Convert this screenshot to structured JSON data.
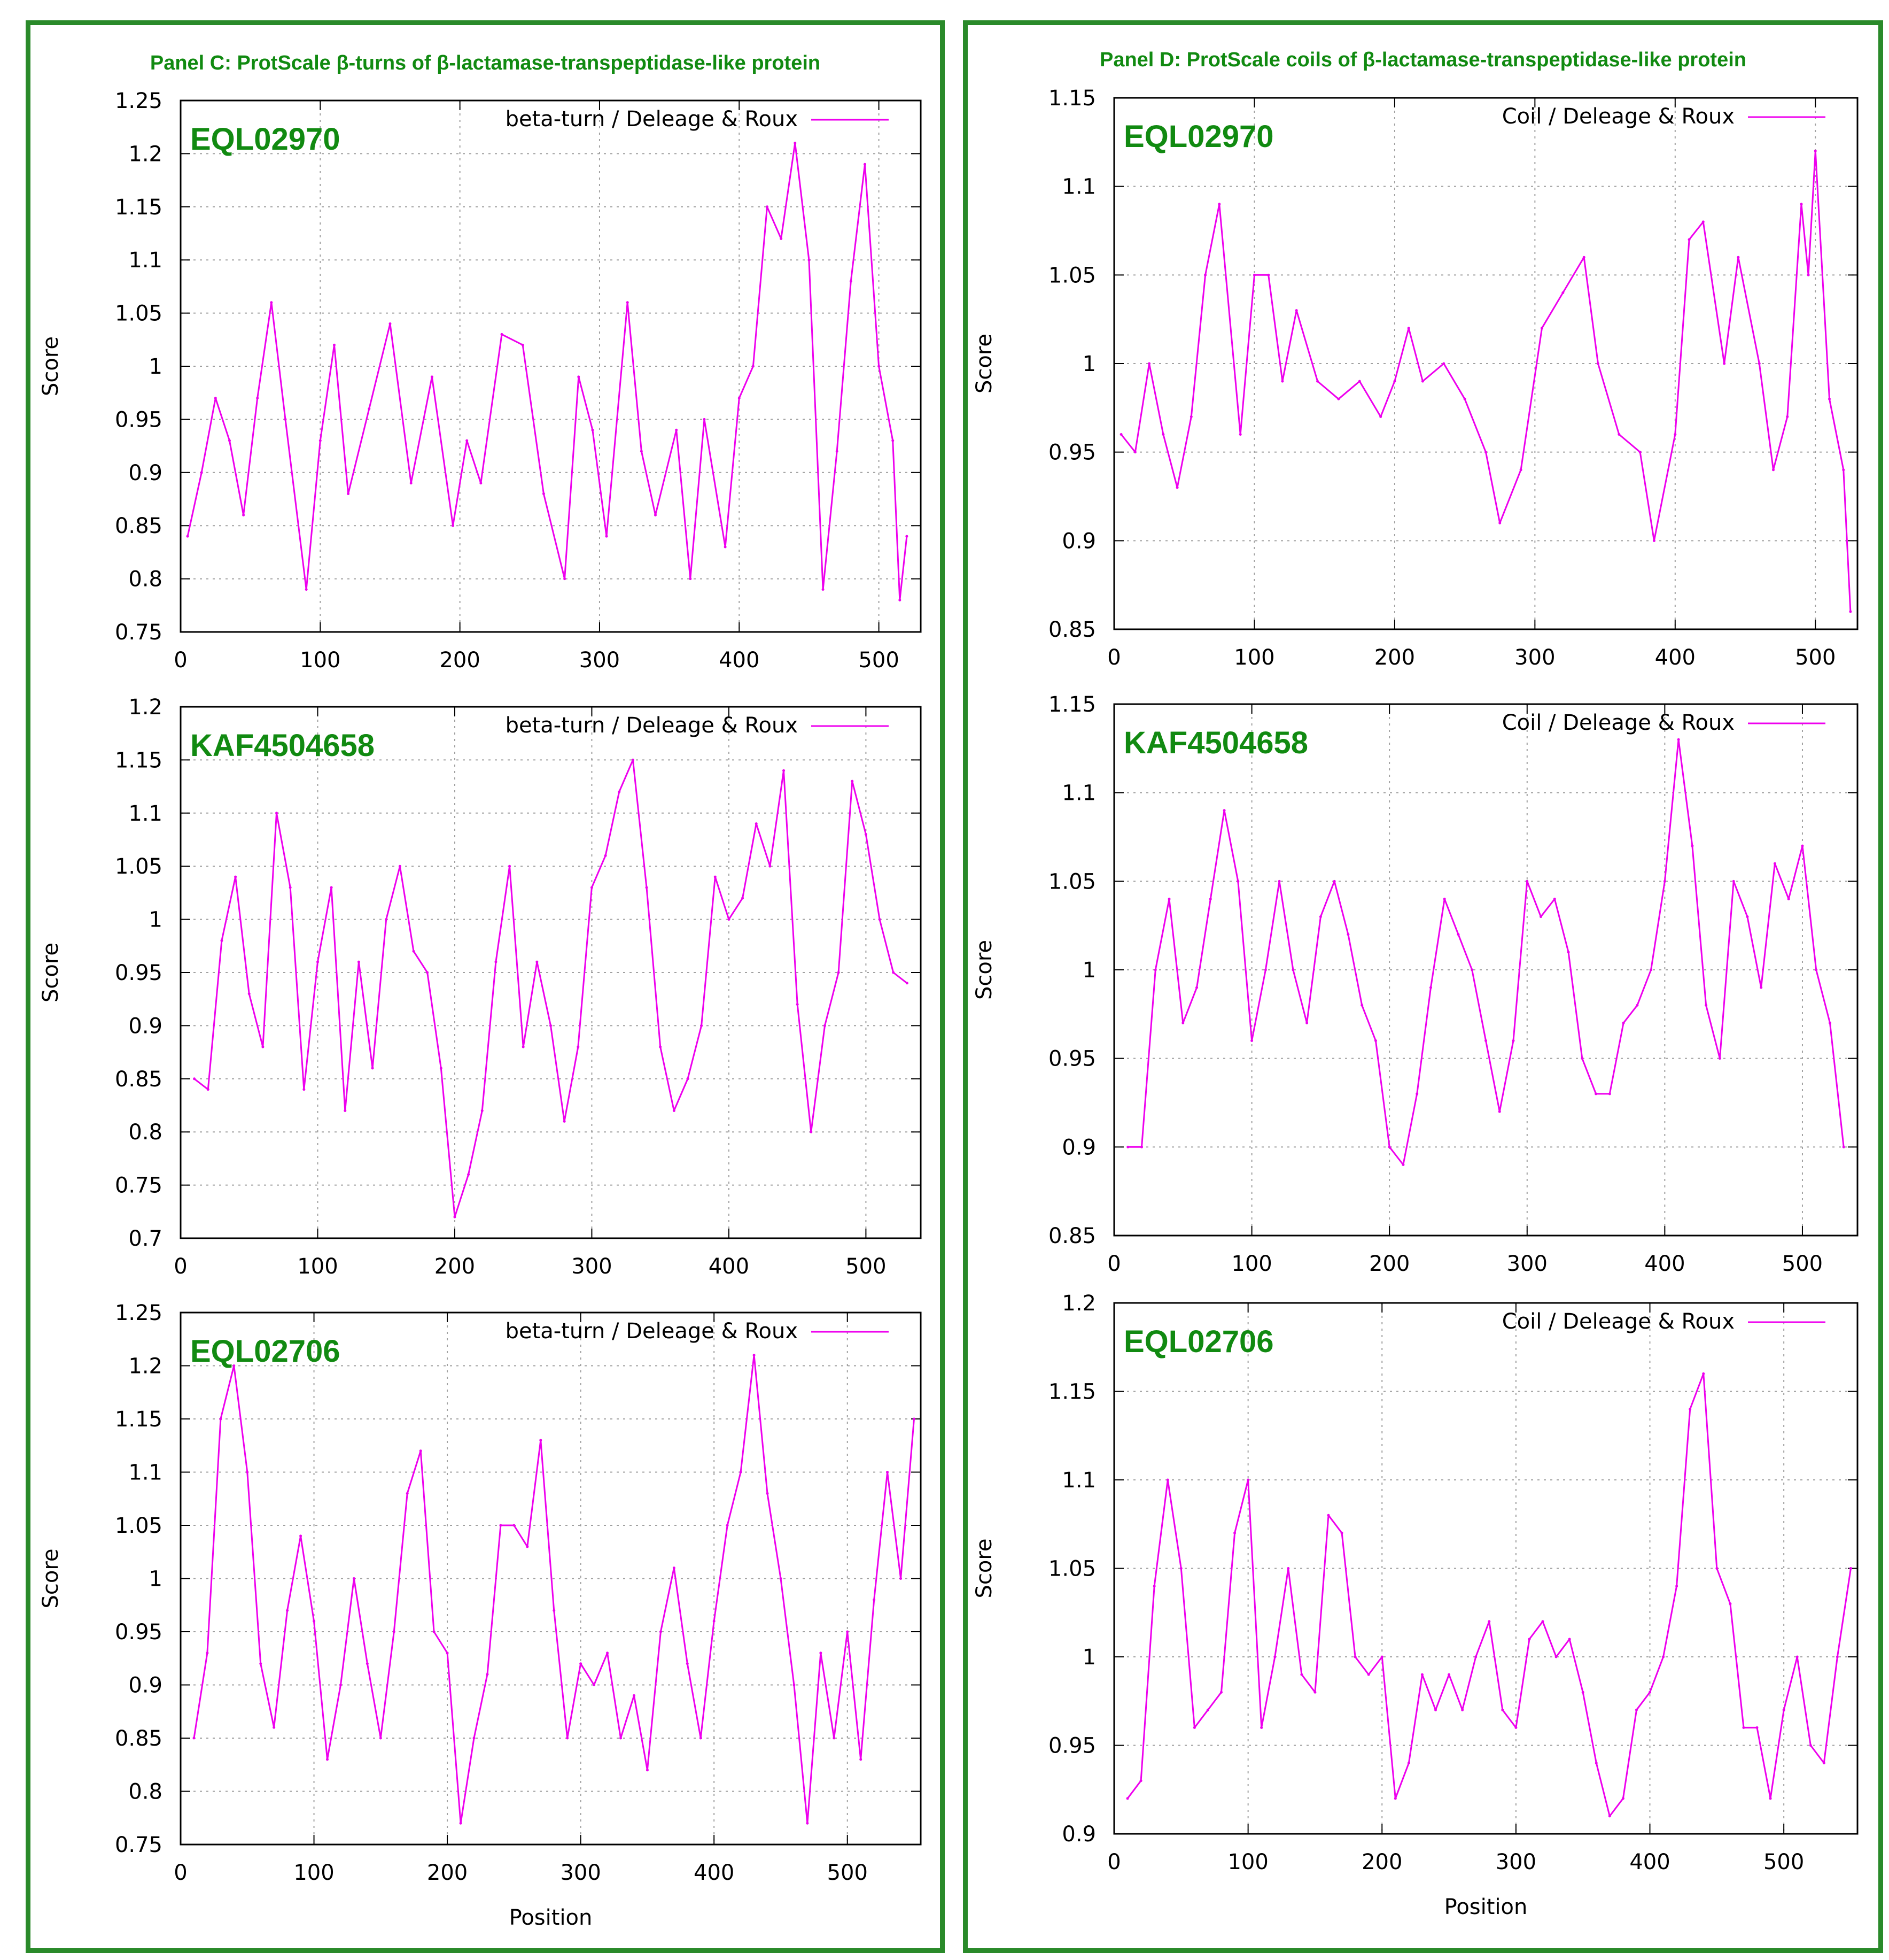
{
  "panels": {
    "c_title": "Panel C: ProtScale β-turns of β-lactamase-transpeptidase-like protein",
    "d_title": "Panel D: ProtScale coils of β-lactamase-transpeptidase-like protein"
  },
  "colors": {
    "line": "#ee00ee",
    "accent_green": "#118a11",
    "border_green": "#2a8a2a",
    "grid": "#a0a0a0"
  },
  "chart_data": [
    {
      "id": "c1",
      "panel": "C",
      "type": "line",
      "protein": "EQL02970",
      "legend": "beta-turn / Deleage & Roux",
      "xlabel": "",
      "ylabel": "Score",
      "xlim": [
        0,
        530
      ],
      "ylim": [
        0.75,
        1.25
      ],
      "yticks": [
        "0.75",
        "0.8",
        "0.85",
        "0.9",
        "0.95",
        "1",
        "1.05",
        "1.1",
        "1.15",
        "1.2",
        "1.25"
      ],
      "xticks": [
        "0",
        "100",
        "200",
        "300",
        "400",
        "500"
      ],
      "x": [
        5,
        15,
        25,
        35,
        45,
        55,
        65,
        75,
        90,
        100,
        110,
        120,
        135,
        150,
        165,
        180,
        195,
        205,
        215,
        230,
        245,
        260,
        275,
        285,
        295,
        305,
        320,
        330,
        340,
        355,
        365,
        375,
        390,
        400,
        410,
        420,
        430,
        440,
        450,
        460,
        470,
        480,
        490,
        500,
        510,
        515,
        520
      ],
      "y": [
        0.84,
        0.9,
        0.97,
        0.93,
        0.86,
        0.97,
        1.06,
        0.95,
        0.79,
        0.93,
        1.02,
        0.88,
        0.96,
        1.04,
        0.89,
        0.99,
        0.85,
        0.93,
        0.89,
        1.03,
        1.02,
        0.88,
        0.8,
        0.99,
        0.94,
        0.84,
        1.06,
        0.92,
        0.86,
        0.94,
        0.8,
        0.95,
        0.83,
        0.97,
        1.0,
        1.15,
        1.12,
        1.21,
        1.1,
        0.79,
        0.92,
        1.08,
        1.19,
        1.0,
        0.93,
        0.78,
        0.84
      ]
    },
    {
      "id": "c2",
      "panel": "C",
      "type": "line",
      "protein": "KAF4504658",
      "legend": "beta-turn / Deleage & Roux",
      "xlabel": "",
      "ylabel": "Score",
      "xlim": [
        0,
        540
      ],
      "ylim": [
        0.7,
        1.2
      ],
      "yticks": [
        "0.7",
        "0.75",
        "0.8",
        "0.85",
        "0.9",
        "0.95",
        "1",
        "1.05",
        "1.1",
        "1.15",
        "1.2"
      ],
      "xticks": [
        "0",
        "100",
        "200",
        "300",
        "400",
        "500"
      ],
      "x": [
        10,
        20,
        30,
        40,
        50,
        60,
        70,
        80,
        90,
        100,
        110,
        120,
        130,
        140,
        150,
        160,
        170,
        180,
        190,
        200,
        210,
        220,
        230,
        240,
        250,
        260,
        270,
        280,
        290,
        300,
        310,
        320,
        330,
        340,
        350,
        360,
        370,
        380,
        390,
        400,
        410,
        420,
        430,
        440,
        450,
        460,
        470,
        480,
        490,
        500,
        510,
        520,
        530
      ],
      "y": [
        0.85,
        0.84,
        0.98,
        1.04,
        0.93,
        0.88,
        1.1,
        1.03,
        0.84,
        0.96,
        1.03,
        0.82,
        0.96,
        0.86,
        1.0,
        1.05,
        0.97,
        0.95,
        0.86,
        0.72,
        0.76,
        0.82,
        0.96,
        1.05,
        0.88,
        0.96,
        0.9,
        0.81,
        0.88,
        1.03,
        1.06,
        1.12,
        1.15,
        1.03,
        0.88,
        0.82,
        0.85,
        0.9,
        1.04,
        1.0,
        1.02,
        1.09,
        1.05,
        1.14,
        0.92,
        0.8,
        0.9,
        0.95,
        1.13,
        1.08,
        1.0,
        0.95,
        0.94
      ]
    },
    {
      "id": "c3",
      "panel": "C",
      "type": "line",
      "protein": "EQL02706",
      "legend": "beta-turn / Deleage & Roux",
      "xlabel": "Position",
      "ylabel": "Score",
      "xlim": [
        0,
        555
      ],
      "ylim": [
        0.75,
        1.25
      ],
      "yticks": [
        "0.75",
        "0.8",
        "0.85",
        "0.9",
        "0.95",
        "1",
        "1.05",
        "1.1",
        "1.15",
        "1.2",
        "1.25"
      ],
      "xticks": [
        "0",
        "100",
        "200",
        "300",
        "400",
        "500"
      ],
      "x": [
        10,
        20,
        30,
        40,
        50,
        60,
        70,
        80,
        90,
        100,
        110,
        120,
        130,
        140,
        150,
        160,
        170,
        180,
        190,
        200,
        210,
        220,
        230,
        240,
        250,
        260,
        270,
        280,
        290,
        300,
        310,
        320,
        330,
        340,
        350,
        360,
        370,
        380,
        390,
        400,
        410,
        420,
        430,
        440,
        450,
        460,
        470,
        480,
        490,
        500,
        510,
        520,
        530,
        540,
        550
      ],
      "y": [
        0.85,
        0.93,
        1.15,
        1.2,
        1.1,
        0.92,
        0.86,
        0.97,
        1.04,
        0.96,
        0.83,
        0.9,
        1.0,
        0.92,
        0.85,
        0.95,
        1.08,
        1.12,
        0.95,
        0.93,
        0.77,
        0.85,
        0.91,
        1.05,
        1.05,
        1.03,
        1.13,
        0.97,
        0.85,
        0.92,
        0.9,
        0.93,
        0.85,
        0.89,
        0.82,
        0.95,
        1.01,
        0.92,
        0.85,
        0.96,
        1.05,
        1.1,
        1.21,
        1.08,
        1.0,
        0.9,
        0.77,
        0.93,
        0.85,
        0.95,
        0.83,
        0.98,
        1.1,
        1.0,
        1.15
      ]
    },
    {
      "id": "d1",
      "panel": "D",
      "type": "line",
      "protein": "EQL02970",
      "legend": "Coil / Deleage & Roux",
      "xlabel": "",
      "ylabel": "Score",
      "xlim": [
        0,
        530
      ],
      "ylim": [
        0.85,
        1.15
      ],
      "yticks": [
        "0.85",
        "0.9",
        "0.95",
        "1",
        "1.05",
        "1.1",
        "1.15"
      ],
      "xticks": [
        "0",
        "100",
        "200",
        "300",
        "400",
        "500"
      ],
      "x": [
        5,
        15,
        25,
        35,
        45,
        55,
        65,
        75,
        90,
        100,
        110,
        120,
        130,
        145,
        160,
        175,
        190,
        200,
        210,
        220,
        235,
        250,
        265,
        275,
        290,
        305,
        320,
        335,
        345,
        360,
        375,
        385,
        400,
        410,
        420,
        435,
        445,
        460,
        470,
        480,
        490,
        495,
        500,
        510,
        520,
        525
      ],
      "y": [
        0.96,
        0.95,
        1.0,
        0.96,
        0.93,
        0.97,
        1.05,
        1.09,
        0.96,
        1.05,
        1.05,
        0.99,
        1.03,
        0.99,
        0.98,
        0.99,
        0.97,
        0.99,
        1.02,
        0.99,
        1.0,
        0.98,
        0.95,
        0.91,
        0.94,
        1.02,
        1.04,
        1.06,
        1.0,
        0.96,
        0.95,
        0.9,
        0.96,
        1.07,
        1.08,
        1.0,
        1.06,
        1.0,
        0.94,
        0.97,
        1.09,
        1.05,
        1.12,
        0.98,
        0.94,
        0.86
      ]
    },
    {
      "id": "d2",
      "panel": "D",
      "type": "line",
      "protein": "KAF4504658",
      "legend": "Coil / Deleage & Roux",
      "xlabel": "",
      "ylabel": "Score",
      "xlim": [
        0,
        540
      ],
      "ylim": [
        0.85,
        1.15
      ],
      "yticks": [
        "0.85",
        "0.9",
        "0.95",
        "1",
        "1.05",
        "1.1",
        "1.15"
      ],
      "xticks": [
        "0",
        "100",
        "200",
        "300",
        "400",
        "500"
      ],
      "x": [
        10,
        20,
        30,
        40,
        50,
        60,
        70,
        80,
        90,
        100,
        110,
        120,
        130,
        140,
        150,
        160,
        170,
        180,
        190,
        200,
        210,
        220,
        230,
        240,
        250,
        260,
        270,
        280,
        290,
        300,
        310,
        320,
        330,
        340,
        350,
        360,
        370,
        380,
        390,
        400,
        410,
        420,
        430,
        440,
        450,
        460,
        470,
        480,
        490,
        500,
        510,
        520,
        530
      ],
      "y": [
        0.9,
        0.9,
        1.0,
        1.04,
        0.97,
        0.99,
        1.04,
        1.09,
        1.05,
        0.96,
        1.0,
        1.05,
        1.0,
        0.97,
        1.03,
        1.05,
        1.02,
        0.98,
        0.96,
        0.9,
        0.89,
        0.93,
        0.99,
        1.04,
        1.02,
        1.0,
        0.96,
        0.92,
        0.96,
        1.05,
        1.03,
        1.04,
        1.01,
        0.95,
        0.93,
        0.93,
        0.97,
        0.98,
        1.0,
        1.05,
        1.13,
        1.07,
        0.98,
        0.95,
        1.05,
        1.03,
        0.99,
        1.06,
        1.04,
        1.07,
        1.0,
        0.97,
        0.9
      ]
    },
    {
      "id": "d3",
      "panel": "D",
      "type": "line",
      "protein": "EQL02706",
      "legend": "Coil / Deleage & Roux",
      "xlabel": "Position",
      "ylabel": "Score",
      "xlim": [
        0,
        555
      ],
      "ylim": [
        0.9,
        1.2
      ],
      "yticks": [
        "0.9",
        "0.95",
        "1",
        "1.05",
        "1.1",
        "1.15",
        "1.2"
      ],
      "xticks": [
        "0",
        "100",
        "200",
        "300",
        "400",
        "500"
      ],
      "x": [
        10,
        20,
        30,
        40,
        50,
        60,
        70,
        80,
        90,
        100,
        110,
        120,
        130,
        140,
        150,
        160,
        170,
        180,
        190,
        200,
        210,
        220,
        230,
        240,
        250,
        260,
        270,
        280,
        290,
        300,
        310,
        320,
        330,
        340,
        350,
        360,
        370,
        380,
        390,
        400,
        410,
        420,
        430,
        440,
        450,
        460,
        470,
        480,
        490,
        500,
        510,
        520,
        530,
        540,
        550
      ],
      "y": [
        0.92,
        0.93,
        1.04,
        1.1,
        1.05,
        0.96,
        0.97,
        0.98,
        1.07,
        1.1,
        0.96,
        1.0,
        1.05,
        0.99,
        0.98,
        1.08,
        1.07,
        1.0,
        0.99,
        1.0,
        0.92,
        0.94,
        0.99,
        0.97,
        0.99,
        0.97,
        1.0,
        1.02,
        0.97,
        0.96,
        1.01,
        1.02,
        1.0,
        1.01,
        0.98,
        0.94,
        0.91,
        0.92,
        0.97,
        0.98,
        1.0,
        1.04,
        1.14,
        1.16,
        1.05,
        1.03,
        0.96,
        0.96,
        0.92,
        0.97,
        1.0,
        0.95,
        0.94,
        1.0,
        1.05
      ]
    }
  ]
}
